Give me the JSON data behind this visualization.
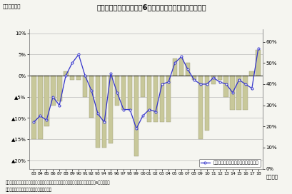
{
  "title": "図表１　設備投資計画は6月調査としては過去最高の伸び",
  "ylabel_left": "（前年度比）",
  "ylabel_right": "（年度）",
  "xlabel_note1": "（注）全規模・全産業、設備投資は含む土地、除くソフトウェア、研究開発投資、各年6月調査時点",
  "xlabel_note2": "（資料）日本銀行「企業短期経済観測調査」",
  "years": [
    "83",
    "84",
    "85",
    "86",
    "87",
    "88",
    "89",
    "90",
    "91",
    "92",
    "93",
    "94",
    "95",
    "96",
    "97",
    "98",
    "99",
    "00",
    "01",
    "02",
    "03",
    "04",
    "05",
    "06",
    "07",
    "08",
    "09",
    "10",
    "11",
    "12",
    "13",
    "14",
    "15",
    "16",
    "17",
    "18"
  ],
  "bar_values": [
    -15,
    -15,
    -12,
    -7,
    -6,
    1,
    -1,
    -1,
    -5,
    -10,
    -17,
    -17,
    -16,
    -7,
    -8,
    -8,
    -19,
    -5,
    -11,
    -11,
    -11,
    -11,
    4,
    4,
    3,
    -1,
    -15,
    -13,
    -2,
    -1,
    -5,
    -8,
    -8,
    -8,
    1,
    6
  ],
  "line_values": [
    22,
    25,
    23,
    34,
    30,
    44,
    50,
    54,
    44,
    37,
    26,
    22,
    45,
    36,
    28,
    28,
    19,
    25,
    28,
    27,
    40,
    41,
    50,
    53,
    47,
    42,
    40,
    40,
    43,
    41,
    40,
    36,
    42,
    40,
    38,
    57
  ],
  "bar_color": "#c8c89a",
  "line_color": "#3333cc",
  "legend_label": "前年度比二桁増の業種割合（右目盛）",
  "ylim_left": [
    -22,
    11
  ],
  "ylim_right": [
    0,
    66
  ],
  "yticks_left": [
    10,
    5,
    0,
    -5,
    -10,
    -15,
    -20
  ],
  "yticks_left_labels": [
    "10%",
    "5%",
    "0%",
    "▲5%",
    "▲10%",
    "▲15%",
    "▲20%"
  ],
  "yticks_right": [
    0,
    10,
    20,
    30,
    40,
    50,
    60
  ],
  "yticks_right_labels": [
    "0%",
    "10%",
    "20%",
    "30%",
    "40%",
    "50%",
    "60%"
  ],
  "background_color": "#f5f5f0",
  "grid_color": "#aaaaaa"
}
